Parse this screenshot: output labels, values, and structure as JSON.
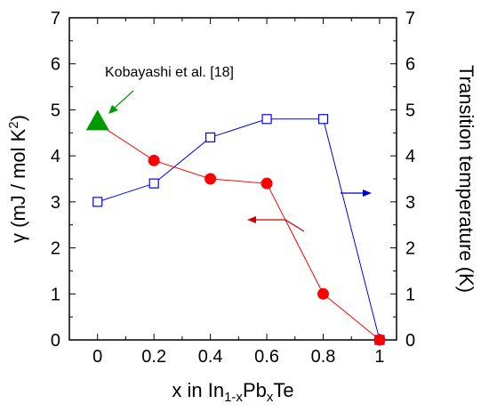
{
  "chart_data": {
    "type": "scatter",
    "x_ticks": [
      "0",
      "0.2",
      "0.4",
      "0.6",
      "0.8",
      "1"
    ],
    "y_ticks_left": [
      "0",
      "1",
      "2",
      "3",
      "4",
      "5",
      "6",
      "7"
    ],
    "y_ticks_right": [
      "0",
      "1",
      "2",
      "3",
      "4",
      "5",
      "6",
      "7"
    ],
    "xlim": [
      -0.1,
      1.06
    ],
    "ylim": [
      0,
      7
    ],
    "xlabel": {
      "main": "x in In",
      "sub1": "1-x",
      "mid": "Pb",
      "sub2": "x",
      "tail": "Te"
    },
    "ylabel_left": {
      "main": "γ (mJ / mol K",
      "sup": "2",
      "tail": ")"
    },
    "ylabel_right": "Transition temperature (K)",
    "grid": false,
    "series": [
      {
        "axis": "left",
        "color": "#ff0000",
        "marker": "filled-circle",
        "x": [
          0,
          0.2,
          0.4,
          0.6,
          0.8,
          1
        ],
        "y": [
          4.7,
          3.9,
          3.5,
          3.4,
          1.0,
          0.0
        ]
      },
      {
        "axis": "right",
        "color": "#0000ff",
        "marker": "open-square",
        "x": [
          0,
          0.2,
          0.4,
          0.6,
          0.8,
          1
        ],
        "y": [
          3.0,
          3.4,
          4.4,
          4.8,
          4.8,
          0.0
        ]
      }
    ],
    "reference_point": {
      "label": "Kobayashi et al. [18]",
      "x": 0,
      "y": 4.75,
      "marker": "filled-triangle",
      "color": "#009900"
    },
    "axis_arrows": [
      {
        "direction": "left",
        "color": "#cc0000",
        "axis": "left"
      },
      {
        "direction": "right",
        "color": "#0000cc",
        "axis": "right"
      }
    ]
  }
}
